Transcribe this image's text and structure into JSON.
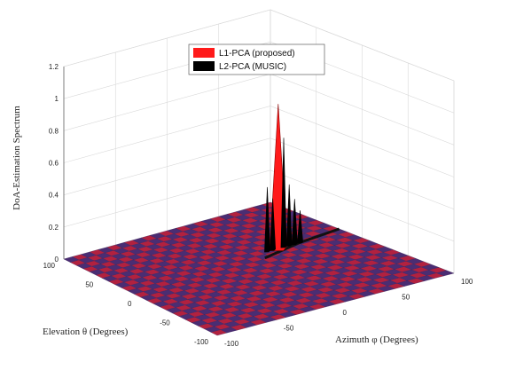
{
  "chart_data": {
    "type": "surface-3d",
    "title": "",
    "xlabel": "Azimuth φ (Degrees)",
    "ylabel": "Elevation θ (Degrees)",
    "zlabel": "DoA-Estimation Spectrum",
    "xlim": [
      -100,
      100
    ],
    "ylim": [
      -100,
      100
    ],
    "zlim": [
      0,
      1.2
    ],
    "x_ticks": [
      "-100",
      "-50",
      "0",
      "50",
      "100"
    ],
    "y_ticks": [
      "-100",
      "-50",
      "0",
      "50",
      "100"
    ],
    "z_ticks": [
      "0",
      "0.2",
      "0.4",
      "0.6",
      "0.8",
      "1",
      "1.2"
    ],
    "grid": true,
    "legend_position": "top",
    "series": [
      {
        "name": "L1-PCA (proposed)",
        "color": "#ff1a1a",
        "peaks": [
          {
            "azimuth": 40,
            "elevation": 20,
            "value": 0.9
          }
        ]
      },
      {
        "name": "L2-PCA (MUSIC)",
        "color": "#000000",
        "peaks": [
          {
            "azimuth": 45,
            "elevation": 20,
            "value": 0.68
          },
          {
            "azimuth": 30,
            "elevation": 20,
            "value": 0.4
          },
          {
            "azimuth": 50,
            "elevation": 20,
            "value": 0.38
          },
          {
            "azimuth": 35,
            "elevation": 20,
            "value": 0.32
          },
          {
            "azimuth": 55,
            "elevation": 20,
            "value": 0.28
          },
          {
            "azimuth": 60,
            "elevation": 20,
            "value": 0.2
          }
        ]
      }
    ]
  }
}
